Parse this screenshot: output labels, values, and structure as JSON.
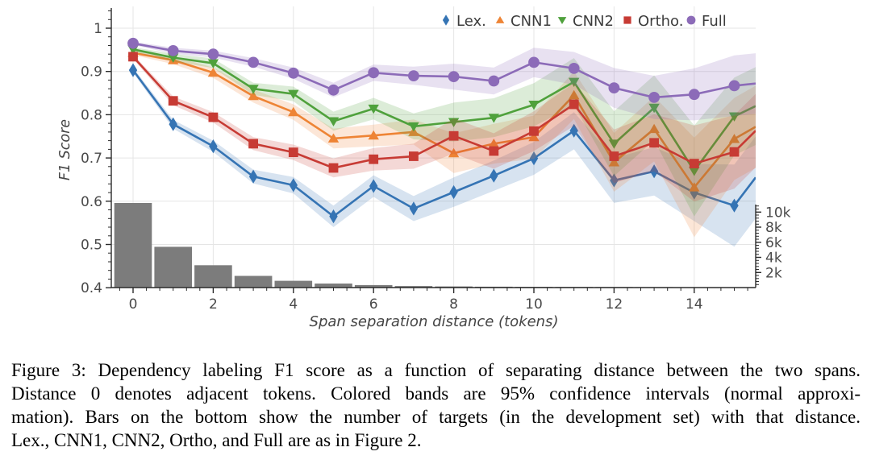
{
  "figure": {
    "caption_lines": [
      "Figure 3: Dependency labeling F1 score as a function of separating distance between the two spans.",
      "Distance 0 denotes adjacent tokens.  Colored bands are 95% confidence intervals (normal approxi-",
      "mation). Bars on the bottom show the number of targets (in the development set) with that distance.",
      "Lex., CNN1, CNN2, Ortho, and Full are as in Figure 2."
    ]
  },
  "chart_data": {
    "type": "line",
    "title": "",
    "xlabel": "Span separation distance (tokens)",
    "ylabel": "F1 Score",
    "legend_position": "top",
    "grid": true,
    "x": [
      0,
      1,
      2,
      3,
      4,
      5,
      6,
      7,
      8,
      9,
      10,
      11,
      12,
      13,
      14,
      15
    ],
    "xlim": [
      -0.55,
      15.53
    ],
    "ylim": [
      0.4,
      1.05
    ],
    "band_meaning": "95% confidence interval (normal approximation)",
    "series": [
      {
        "name": "Lex.",
        "marker": "diamond",
        "color": "#3574b4",
        "values": [
          0.903,
          0.778,
          0.727,
          0.657,
          0.637,
          0.565,
          0.635,
          0.583,
          0.621,
          0.659,
          0.699,
          0.763,
          0.648,
          0.669,
          0.62,
          0.59
        ],
        "ci": [
          0.006,
          0.01,
          0.013,
          0.016,
          0.019,
          0.025,
          0.025,
          0.029,
          0.034,
          0.035,
          0.038,
          0.043,
          0.052,
          0.056,
          0.066,
          0.095
        ],
        "edge_value": 0.655
      },
      {
        "name": "CNN1",
        "marker": "triangle-up",
        "color": "#ee8435",
        "values": [
          0.943,
          0.926,
          0.897,
          0.843,
          0.806,
          0.745,
          0.752,
          0.76,
          0.711,
          0.733,
          0.748,
          0.845,
          0.69,
          0.767,
          0.632,
          0.744
        ],
        "ci": [
          0.005,
          0.009,
          0.012,
          0.015,
          0.018,
          0.023,
          0.025,
          0.029,
          0.046,
          0.046,
          0.05,
          0.055,
          0.068,
          0.075,
          0.115,
          0.095
        ],
        "edge_value": 0.772
      },
      {
        "name": "CNN2",
        "marker": "triangle-down",
        "color": "#4fa13c",
        "values": [
          0.951,
          0.932,
          0.919,
          0.86,
          0.848,
          0.785,
          0.814,
          0.773,
          0.783,
          0.793,
          0.823,
          0.876,
          0.733,
          0.816,
          0.67,
          0.796
        ],
        "ci": [
          0.005,
          0.009,
          0.011,
          0.014,
          0.017,
          0.022,
          0.025,
          0.03,
          0.045,
          0.045,
          0.05,
          0.055,
          0.075,
          0.075,
          0.105,
          0.09
        ],
        "edge_value": 0.82
      },
      {
        "name": "Ortho.",
        "marker": "square",
        "color": "#c73b34",
        "values": [
          0.934,
          0.832,
          0.794,
          0.733,
          0.713,
          0.677,
          0.697,
          0.704,
          0.751,
          0.716,
          0.762,
          0.824,
          0.704,
          0.735,
          0.687,
          0.714
        ],
        "ci": [
          0.005,
          0.01,
          0.012,
          0.015,
          0.018,
          0.022,
          0.026,
          0.029,
          0.041,
          0.041,
          0.046,
          0.05,
          0.062,
          0.066,
          0.088,
          0.085
        ],
        "edge_value": 0.763
      },
      {
        "name": "Full",
        "marker": "circle",
        "color": "#8c6bb8",
        "values": [
          0.965,
          0.948,
          0.94,
          0.921,
          0.896,
          0.857,
          0.897,
          0.89,
          0.888,
          0.878,
          0.921,
          0.907,
          0.862,
          0.84,
          0.847,
          0.867
        ],
        "ci": [
          0.004,
          0.007,
          0.008,
          0.01,
          0.013,
          0.017,
          0.019,
          0.021,
          0.03,
          0.031,
          0.034,
          0.038,
          0.046,
          0.05,
          0.06,
          0.07
        ],
        "edge_value": 0.872
      }
    ],
    "bars": {
      "label": "number of targets (development set)",
      "color": "#7c7c7c",
      "axis": "right",
      "values": [
        11200,
        5400,
        2950,
        1550,
        900,
        530,
        330,
        200,
        150,
        120,
        100,
        85,
        75,
        65,
        55,
        50
      ]
    },
    "axes": {
      "ylabel": "F1 Score",
      "xlabel": "Span separation distance (tokens)",
      "yticks": [
        0.4,
        0.5,
        0.6,
        0.7,
        0.8,
        0.9,
        1
      ],
      "ytick_labels": [
        "0.4",
        "0.5",
        "0.6",
        "0.7",
        "0.8",
        "0.9",
        "1"
      ],
      "xticks": [
        0,
        2,
        4,
        6,
        8,
        10,
        12,
        14
      ],
      "xtick_labels": [
        "0",
        "2",
        "4",
        "6",
        "8",
        "10",
        "12",
        "14"
      ],
      "right_ticks_k": [
        2,
        4,
        6,
        8,
        10
      ],
      "right_tick_labels": [
        "2k",
        "4k",
        "6k",
        "8k",
        "10k"
      ]
    },
    "style": {
      "grid_color": "#e5e5e5",
      "spine_color": "#2b2b2b",
      "tick_label_color": "#4a4a4a",
      "axis_label_color": "#454545",
      "legend_text_color": "#3c3c3c",
      "band_opacity": 0.2
    }
  }
}
